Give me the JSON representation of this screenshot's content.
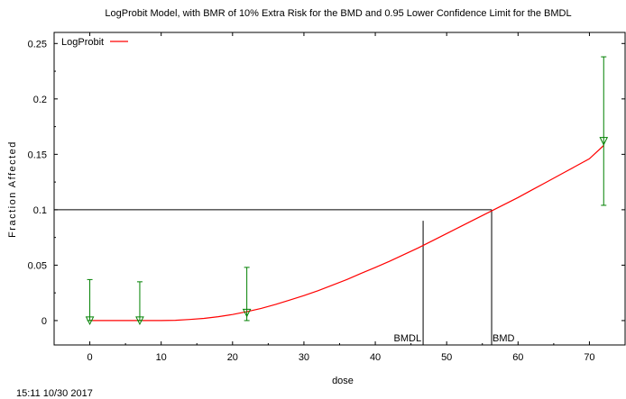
{
  "chart_data": {
    "type": "line",
    "title": "LogProbit Model, with BMR of 10% Extra Risk for the BMD and 0.95 Lower Confidence Limit for the BMDL",
    "xlabel": "dose",
    "ylabel": "Fraction Affected",
    "xlim": [
      -5,
      75
    ],
    "ylim": [
      -0.022,
      0.26
    ],
    "x_ticks": [
      0,
      10,
      20,
      30,
      40,
      50,
      60,
      70
    ],
    "x_tick_labels": [
      "0",
      "10",
      "20",
      "30",
      "40",
      "50",
      "60",
      "70"
    ],
    "y_ticks": [
      0,
      0.05,
      0.1,
      0.15,
      0.2,
      0.25
    ],
    "y_tick_labels": [
      "0",
      "0.05",
      "0.1",
      "0.15",
      "0.2",
      "0.25"
    ],
    "legend": {
      "position": "top-left",
      "entries": [
        {
          "label": "LogProbit",
          "color": "#ff0000"
        }
      ]
    },
    "series": [
      {
        "name": "LogProbit",
        "color": "#ff0000",
        "x": [
          0,
          5,
          10,
          12,
          14,
          16,
          18,
          20,
          22,
          24,
          26,
          28,
          30,
          32,
          34,
          36,
          38,
          40,
          42,
          44,
          46,
          48,
          50,
          52,
          54,
          56,
          58,
          60,
          62,
          64,
          66,
          68,
          70,
          72
        ],
        "y": [
          0,
          0,
          0,
          0.0003,
          0.001,
          0.002,
          0.0035,
          0.0055,
          0.008,
          0.011,
          0.0145,
          0.0185,
          0.0225,
          0.027,
          0.032,
          0.037,
          0.0425,
          0.048,
          0.0535,
          0.0595,
          0.0655,
          0.072,
          0.0785,
          0.085,
          0.0915,
          0.098,
          0.1045,
          0.111,
          0.118,
          0.125,
          0.132,
          0.139,
          0.146,
          0.158
        ]
      }
    ],
    "observed": {
      "color": "#008000",
      "points": [
        {
          "x": 0,
          "y": 0,
          "lower": 0,
          "upper": 0.037
        },
        {
          "x": 7,
          "y": 0,
          "lower": 0,
          "upper": 0.035
        },
        {
          "x": 22,
          "y": 0.007,
          "lower": 0,
          "upper": 0.048
        },
        {
          "x": 72,
          "y": 0.162,
          "lower": 0.104,
          "upper": 0.238
        }
      ]
    },
    "bmr_level": 0.1,
    "bmd": 56.3,
    "bmdl": 46.7,
    "bmd_label": "BMD",
    "bmdl_label": "BMDL"
  },
  "timestamp": "15:11 10/30 2017"
}
